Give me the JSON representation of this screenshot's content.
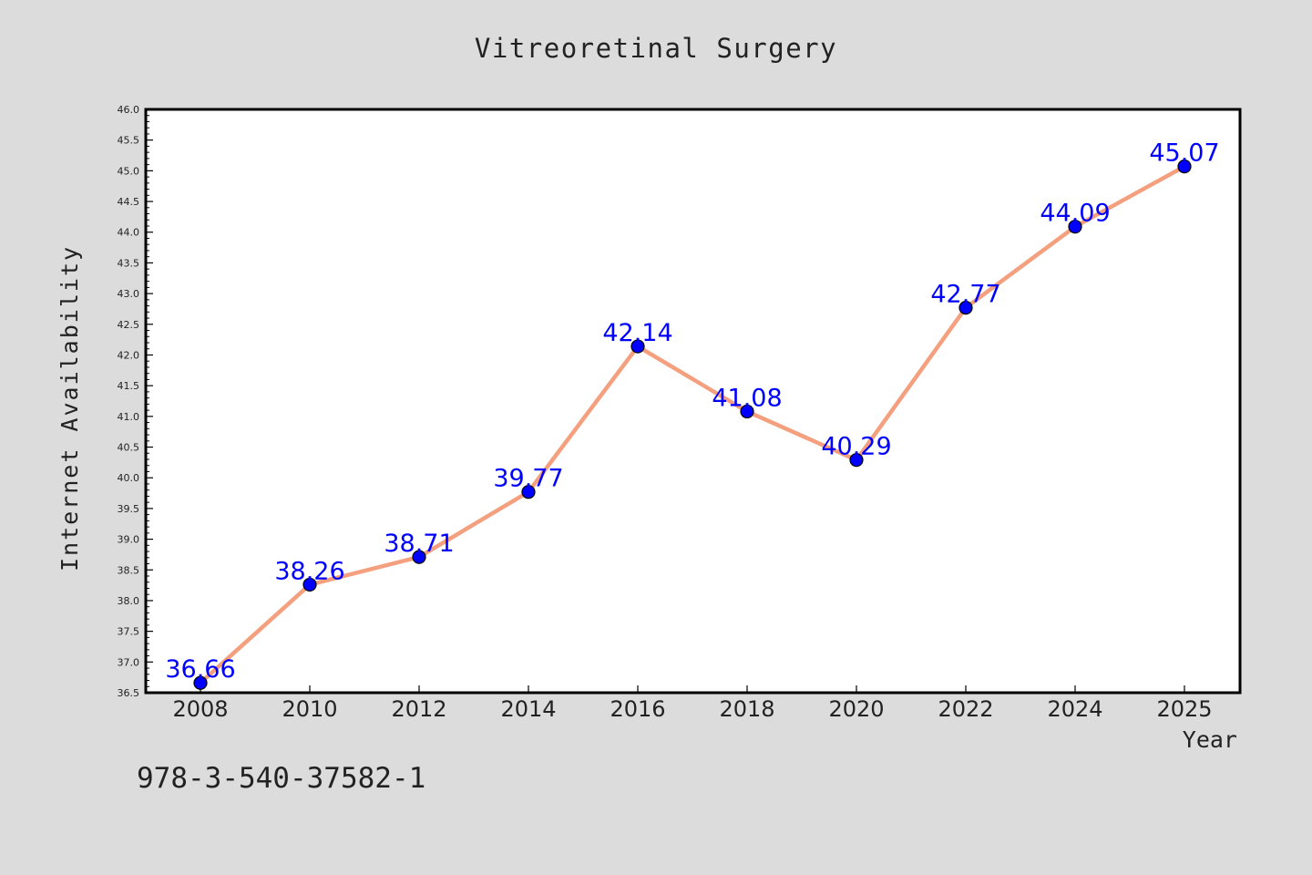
{
  "colors": {
    "background": "#dcdcdc",
    "plot_background": "#ffffff",
    "line": "#f4a07f",
    "marker": "#0000ff",
    "data_label": "#0000ff",
    "text": "#222222"
  },
  "footer_code": "978-3-540-37582-1",
  "chart_data": {
    "type": "line",
    "title": "Vitreoretinal Surgery",
    "xlabel": "Year",
    "ylabel": "Internet Availability",
    "categories": [
      "2008",
      "2010",
      "2012",
      "2014",
      "2016",
      "2018",
      "2020",
      "2022",
      "2024",
      "2025"
    ],
    "values": [
      36.66,
      38.26,
      38.71,
      39.77,
      42.14,
      41.08,
      40.29,
      42.77,
      44.09,
      45.07
    ],
    "data_labels": [
      "36.66",
      "38.26",
      "38.71",
      "39.77",
      "42.14",
      "41.08",
      "40.29",
      "42.77",
      "44.09",
      "45.07"
    ],
    "ylim": [
      36.5,
      46.0
    ],
    "yticks": [
      "36.5",
      "37.0",
      "37.5",
      "38.0",
      "38.5",
      "39.0",
      "39.5",
      "40.0",
      "40.5",
      "41.0",
      "41.5",
      "42.0",
      "42.5",
      "43.0",
      "43.5",
      "44.0",
      "44.5",
      "45.0",
      "45.5",
      "46.0"
    ],
    "grid": false,
    "legend": "none"
  }
}
